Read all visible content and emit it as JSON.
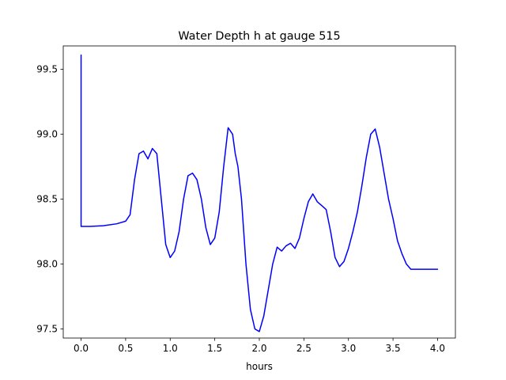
{
  "chart_data": {
    "type": "line",
    "title": "Water Depth h at gauge 515",
    "xlabel": "hours",
    "ylabel": "",
    "xlim": [
      -0.2,
      4.2
    ],
    "ylim": [
      97.43,
      99.68
    ],
    "grid": false,
    "x_ticks": [
      0.0,
      0.5,
      1.0,
      1.5,
      2.0,
      2.5,
      3.0,
      3.5,
      4.0
    ],
    "x_tick_labels": [
      "0.0",
      "0.5",
      "1.0",
      "1.5",
      "2.0",
      "2.5",
      "3.0",
      "3.5",
      "4.0"
    ],
    "y_ticks": [
      97.5,
      98.0,
      98.5,
      99.0,
      99.5
    ],
    "y_tick_labels": [
      "97.5",
      "98.0",
      "98.5",
      "99.0",
      "99.5"
    ],
    "series": [
      {
        "color": "#0000ff",
        "x": [
          0.0,
          0.0,
          0.1,
          0.25,
          0.4,
          0.5,
          0.55,
          0.6,
          0.65,
          0.7,
          0.75,
          0.8,
          0.85,
          0.9,
          0.95,
          1.0,
          1.05,
          1.1,
          1.15,
          1.2,
          1.25,
          1.3,
          1.35,
          1.4,
          1.45,
          1.5,
          1.55,
          1.6,
          1.65,
          1.7,
          1.73,
          1.76,
          1.8,
          1.85,
          1.9,
          1.95,
          2.0,
          2.05,
          2.1,
          2.15,
          2.2,
          2.25,
          2.3,
          2.35,
          2.4,
          2.45,
          2.5,
          2.55,
          2.6,
          2.65,
          2.7,
          2.75,
          2.8,
          2.85,
          2.9,
          2.95,
          3.0,
          3.05,
          3.1,
          3.15,
          3.2,
          3.25,
          3.3,
          3.35,
          3.4,
          3.45,
          3.5,
          3.55,
          3.6,
          3.65,
          3.7,
          3.75,
          3.8,
          3.85,
          3.9,
          3.95,
          4.0
        ],
        "y": [
          99.61,
          98.29,
          98.29,
          98.295,
          98.31,
          98.33,
          98.38,
          98.65,
          98.85,
          98.87,
          98.81,
          98.89,
          98.85,
          98.5,
          98.15,
          98.05,
          98.1,
          98.25,
          98.5,
          98.68,
          98.7,
          98.65,
          98.5,
          98.28,
          98.15,
          98.2,
          98.4,
          98.75,
          99.05,
          99.0,
          98.85,
          98.75,
          98.5,
          98.0,
          97.65,
          97.5,
          97.48,
          97.6,
          97.8,
          98.0,
          98.13,
          98.1,
          98.14,
          98.16,
          98.12,
          98.2,
          98.35,
          98.48,
          98.54,
          98.48,
          98.45,
          98.42,
          98.25,
          98.05,
          97.98,
          98.02,
          98.12,
          98.25,
          98.4,
          98.6,
          98.82,
          99.0,
          99.04,
          98.9,
          98.7,
          98.5,
          98.35,
          98.18,
          98.08,
          98.0,
          97.96,
          97.96,
          97.96,
          97.96,
          97.96,
          97.96,
          97.96
        ]
      }
    ]
  }
}
